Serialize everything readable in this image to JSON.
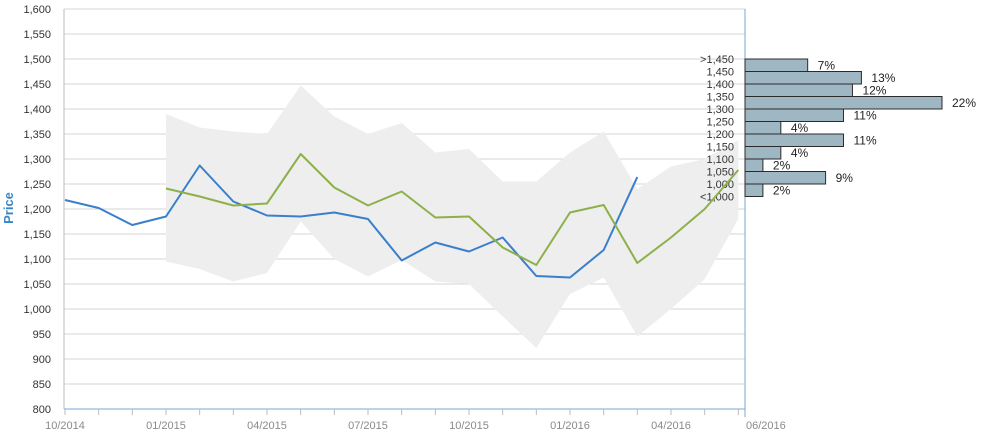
{
  "chart_data": {
    "type": "line",
    "ylabel": "Price",
    "ylim": [
      800,
      1600
    ],
    "y_ticks": [
      "800",
      "850",
      "900",
      "950",
      "1,000",
      "1,050",
      "1,100",
      "1,150",
      "1,200",
      "1,250",
      "1,300",
      "1,350",
      "1,400",
      "1,450",
      "1,500",
      "1,550",
      "1,600"
    ],
    "x_tick_labels": [
      "10/2014",
      "01/2015",
      "04/2015",
      "07/2015",
      "10/2015",
      "01/2016",
      "04/2016",
      "06/2016"
    ],
    "grid": true,
    "colors": {
      "blue_series": "#3a7fcc",
      "green_series": "#8db04a",
      "band": "#eeeeee",
      "bars": "#9fb6c3",
      "bar_border": "#2b2b2b",
      "axis_blue": "#7aa7d6"
    },
    "series": [
      {
        "color": "#3a7fcc",
        "points": [
          [
            "2014-10",
            1218
          ],
          [
            "2014-11",
            1202
          ],
          [
            "2014-12",
            1168
          ],
          [
            "2015-01",
            1185
          ],
          [
            "2015-02",
            1287
          ],
          [
            "2015-03",
            1215
          ],
          [
            "2015-04",
            1187
          ],
          [
            "2015-05",
            1185
          ],
          [
            "2015-06",
            1193
          ],
          [
            "2015-07",
            1180
          ],
          [
            "2015-08",
            1097
          ],
          [
            "2015-09",
            1133
          ],
          [
            "2015-10",
            1115
          ],
          [
            "2015-11",
            1143
          ],
          [
            "2015-12",
            1066
          ],
          [
            "2016-01",
            1063
          ],
          [
            "2016-02",
            1118
          ],
          [
            "2016-03",
            1264
          ]
        ]
      },
      {
        "color": "#8db04a",
        "points": [
          [
            "2015-01",
            1241
          ],
          [
            "2015-02",
            1225
          ],
          [
            "2015-03",
            1207
          ],
          [
            "2015-04",
            1211
          ],
          [
            "2015-05",
            1310
          ],
          [
            "2015-06",
            1243
          ],
          [
            "2015-07",
            1207
          ],
          [
            "2015-08",
            1235
          ],
          [
            "2015-09",
            1183
          ],
          [
            "2015-10",
            1185
          ],
          [
            "2015-11",
            1123
          ],
          [
            "2015-12",
            1088
          ],
          [
            "2016-01",
            1193
          ],
          [
            "2016-02",
            1208
          ],
          [
            "2016-03",
            1092
          ],
          [
            "2016-04",
            1143
          ],
          [
            "2016-05",
            1200
          ],
          [
            "2016-06",
            1278
          ]
        ]
      }
    ],
    "band": {
      "color": "#eeeeee",
      "upper": [
        [
          "2015-01",
          1390
        ],
        [
          "2015-02",
          1363
        ],
        [
          "2015-03",
          1355
        ],
        [
          "2015-04",
          1350
        ],
        [
          "2015-05",
          1447
        ],
        [
          "2015-06",
          1385
        ],
        [
          "2015-07",
          1350
        ],
        [
          "2015-08",
          1372
        ],
        [
          "2015-09",
          1313
        ],
        [
          "2015-10",
          1320
        ],
        [
          "2015-11",
          1255
        ],
        [
          "2015-12",
          1255
        ],
        [
          "2016-01",
          1313
        ],
        [
          "2016-02",
          1355
        ],
        [
          "2016-03",
          1240
        ],
        [
          "2016-04",
          1285
        ],
        [
          "2016-05",
          1300
        ],
        [
          "2016-06",
          1338
        ]
      ],
      "lower": [
        [
          "2015-01",
          1095
        ],
        [
          "2015-02",
          1080
        ],
        [
          "2015-03",
          1055
        ],
        [
          "2015-04",
          1072
        ],
        [
          "2015-05",
          1175
        ],
        [
          "2015-06",
          1100
        ],
        [
          "2015-07",
          1065
        ],
        [
          "2015-08",
          1098
        ],
        [
          "2015-09",
          1055
        ],
        [
          "2015-10",
          1050
        ],
        [
          "2015-11",
          985
        ],
        [
          "2015-12",
          922
        ],
        [
          "2016-01",
          1030
        ],
        [
          "2016-02",
          1063
        ],
        [
          "2016-03",
          945
        ],
        [
          "2016-04",
          1000
        ],
        [
          "2016-05",
          1060
        ],
        [
          "2016-06",
          1180
        ]
      ]
    },
    "histogram": {
      "bins": [
        {
          "label": ">1,450",
          "percent": 7
        },
        {
          "label": "1,450",
          "percent": 13
        },
        {
          "label": "1,400",
          "percent": 12
        },
        {
          "label": "1,350",
          "percent": 22
        },
        {
          "label": "1,300",
          "percent": 11
        },
        {
          "label": "1,250",
          "percent": 4
        },
        {
          "label": "1,200",
          "percent": 11
        },
        {
          "label": "1,150",
          "percent": 4
        },
        {
          "label": "1,100",
          "percent": 2
        },
        {
          "label": "1,050",
          "percent": 9
        },
        {
          "label": "1,000",
          "percent": 2
        },
        {
          "label": "<1,000",
          "percent": null
        }
      ]
    }
  }
}
